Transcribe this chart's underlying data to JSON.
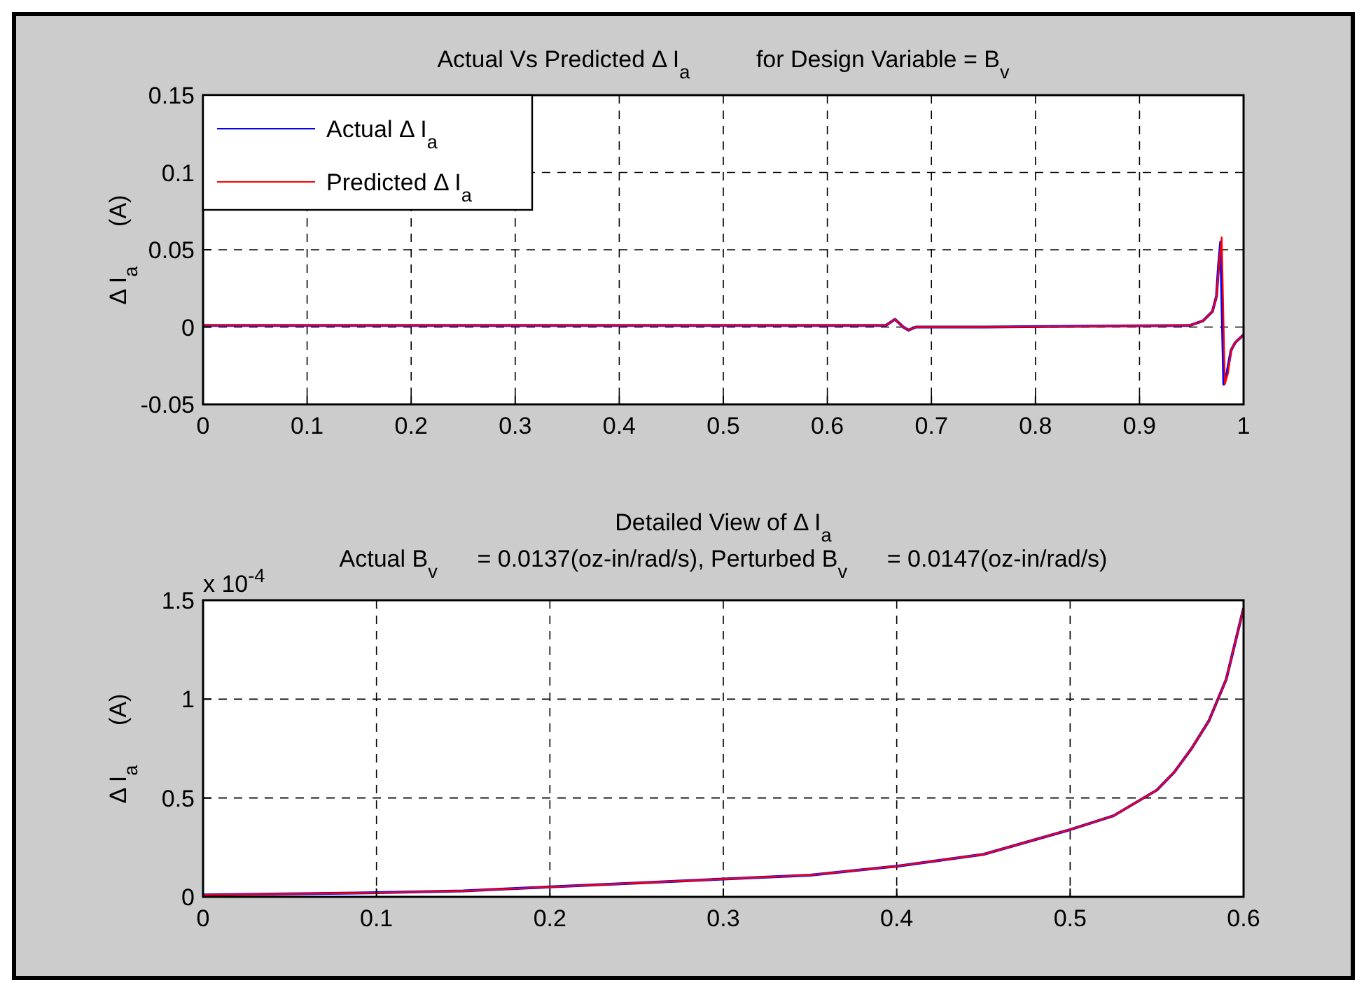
{
  "chart_data": [
    {
      "type": "line",
      "title": "Actual Vs Predicted Δ I$_{a}$          for Design Variable = B$_{v}$",
      "ylabel": "Δ I$_{a}$      (A)",
      "xlim": [
        0,
        1
      ],
      "ylim": [
        -0.05,
        0.15
      ],
      "xticks": [
        0,
        0.1,
        0.2,
        0.3,
        0.4,
        0.5,
        0.6,
        0.7,
        0.8,
        0.9,
        1
      ],
      "yticks": [
        -0.05,
        0,
        0.05,
        0.1,
        0.15
      ],
      "grid": true,
      "legend": "top left",
      "line_style": "solid",
      "marker": "none",
      "series": [
        {
          "name": "Actual Δ I$_{a}$",
          "color": "#0000ff",
          "x": [
            0,
            0.3,
            0.656,
            0.665,
            0.673,
            0.678,
            0.685,
            0.75,
            0.948,
            0.961,
            0.97,
            0.974,
            0.976,
            0.978,
            0.981,
            0.984,
            0.988,
            0.992,
            1
          ],
          "values": [
            0.001,
            0.001,
            0.001,
            0.005,
            0,
            -0.002,
            0,
            0,
            0.001,
            0.004,
            0.01,
            0.02,
            0.04,
            0.055,
            -0.037,
            -0.03,
            -0.015,
            -0.01,
            -0.005
          ]
        },
        {
          "name": "Predicted Δ I$_{a}$",
          "color": "#ff0000",
          "x": [
            0,
            0.3,
            0.656,
            0.665,
            0.673,
            0.678,
            0.685,
            0.75,
            0.948,
            0.961,
            0.97,
            0.974,
            0.977,
            0.979,
            0.982,
            0.985,
            0.988,
            0.992,
            1
          ],
          "values": [
            0.001,
            0.001,
            0.001,
            0.005,
            0,
            -0.002,
            0,
            0,
            0.001,
            0.004,
            0.01,
            0.02,
            0.045,
            0.058,
            -0.037,
            -0.03,
            -0.015,
            -0.01,
            -0.005
          ]
        }
      ]
    },
    {
      "type": "line",
      "title": "Detailed View of Δ I$_{a}$",
      "subtitle": "Actual B$_{v}$      = 0.0137(oz-in/rad/s), Perturbed B$_{v}$      = 0.0147(oz-in/rad/s)",
      "ylabel": "Δ I$_{a}$      (A)",
      "annotations": [
        "x 10$^{-4}$"
      ],
      "xlim": [
        0,
        0.6
      ],
      "ylim": [
        0,
        1.5
      ],
      "xticks": [
        0,
        0.1,
        0.2,
        0.3,
        0.4,
        0.5,
        0.6
      ],
      "yticks": [
        0,
        0.5,
        1,
        1.5
      ],
      "grid": true,
      "line_style": "solid",
      "marker": "none",
      "series": [
        {
          "color": "#0000ff",
          "x": [
            0,
            0.095,
            0.15,
            0.2,
            0.25,
            0.3,
            0.35,
            0.4,
            0.45,
            0.5,
            0.525,
            0.55,
            0.56,
            0.57,
            0.58,
            0.59,
            0.6
          ],
          "values": [
            0.01,
            0.02,
            0.03,
            0.05,
            0.07,
            0.09,
            0.11,
            0.155,
            0.215,
            0.34,
            0.41,
            0.54,
            0.63,
            0.75,
            0.89,
            1.1,
            1.46
          ]
        },
        {
          "color": "#ff0000",
          "x": [
            0,
            0.095,
            0.15,
            0.2,
            0.25,
            0.3,
            0.35,
            0.4,
            0.45,
            0.5,
            0.525,
            0.55,
            0.56,
            0.57,
            0.58,
            0.59,
            0.6
          ],
          "values": [
            0.01,
            0.02,
            0.03,
            0.05,
            0.07,
            0.09,
            0.11,
            0.155,
            0.215,
            0.34,
            0.41,
            0.54,
            0.63,
            0.75,
            0.89,
            1.1,
            1.46
          ]
        }
      ]
    }
  ]
}
